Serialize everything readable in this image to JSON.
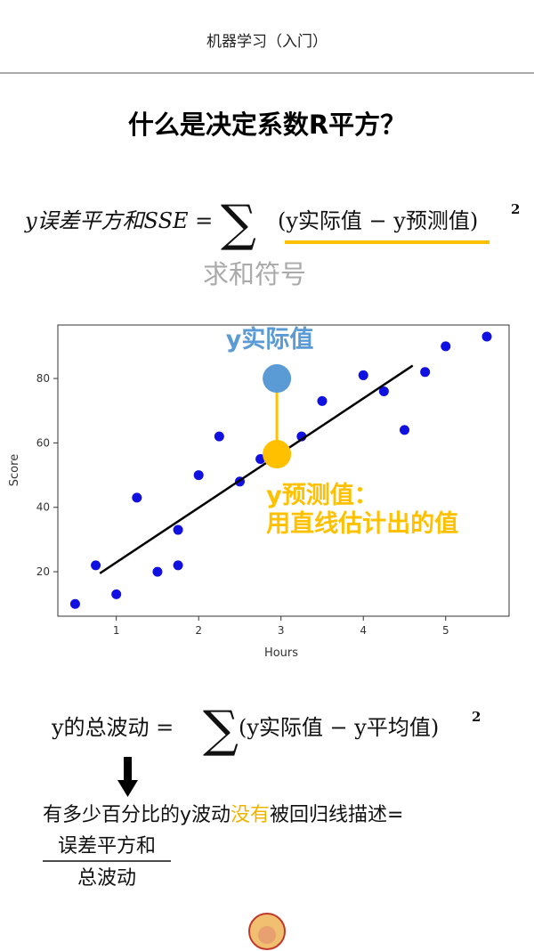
{
  "header": {
    "title": "机器学习（入门）"
  },
  "heading": "什么是决定系数R平方？",
  "formula1": {
    "lhs": "y误差平方和SSE =",
    "sigma": "∑",
    "term": "(y实际值 − y预测值)",
    "power": "2",
    "note": "求和符号"
  },
  "chart_data": {
    "type": "scatter",
    "xlabel": "Hours",
    "ylabel": "Score",
    "xlim": [
      0.29,
      5.77
    ],
    "ylim": [
      6.2,
      96.6
    ],
    "xticks": [
      1,
      2,
      3,
      4,
      5
    ],
    "yticks": [
      20,
      40,
      60,
      80
    ],
    "series": [
      {
        "color": "#1010e0",
        "x": [
          0.5,
          0.75,
          1.0,
          1.25,
          1.5,
          1.75,
          1.75,
          2.0,
          2.25,
          2.5,
          2.75,
          3.25,
          3.5,
          4.0,
          4.25,
          4.5,
          4.75,
          5.0,
          5.5
        ],
        "y": [
          10,
          22,
          13,
          43,
          20,
          33,
          22,
          50,
          62,
          48,
          55,
          62,
          73,
          81,
          76,
          64,
          82,
          90,
          93
        ]
      }
    ],
    "fit": {
      "color": "#000000",
      "x": [
        0.8,
        4.6
      ],
      "y": [
        19.5,
        84
      ]
    },
    "annotations": [
      {
        "text": [
          "y实际值"
        ],
        "color": "#5b9bd5",
        "x": 2.95,
        "y": 80
      },
      {
        "text": [
          "y预测值：",
          "用直线估计出的值"
        ],
        "color": "#ffc000",
        "x": 2.95,
        "y": 56.5
      }
    ]
  },
  "formula2": {
    "lhs": "y的总波动 =",
    "sigma": "∑",
    "term": "(y实际值 − y平均值)",
    "power": "2"
  },
  "statement": {
    "before": "有多少百分比的y波动",
    "highlight": "没有",
    "after": "被回归线描述=",
    "numerator": "误差平方和",
    "denominator": "总波动"
  }
}
